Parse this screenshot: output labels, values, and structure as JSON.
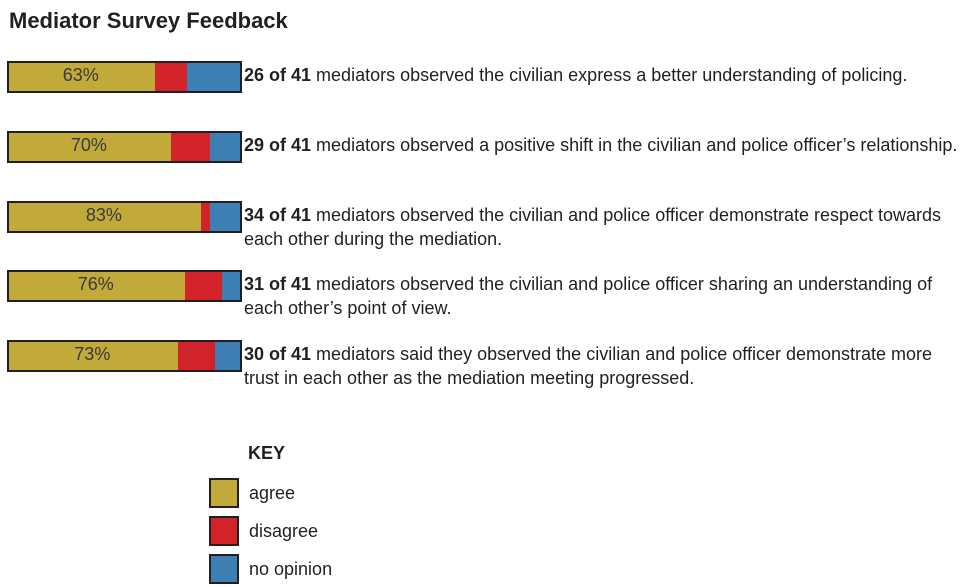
{
  "colors": {
    "agree": "#c1a93a",
    "disagree": "#d2232a",
    "no_opinion": "#3d7fb2"
  },
  "chart_data": {
    "type": "bar",
    "stacked": true,
    "orientation": "horizontal",
    "title": "Mediator Survey Feedback",
    "series_names": [
      "agree",
      "disagree",
      "no opinion"
    ],
    "rows": [
      {
        "percent_label": "63%",
        "values": {
          "agree": 63,
          "disagree": 14,
          "no_opinion": 23
        },
        "count": "26 of 41",
        "text": " mediators observed the civilian express a better understanding of policing."
      },
      {
        "percent_label": "70%",
        "values": {
          "agree": 70,
          "disagree": 17,
          "no_opinion": 13
        },
        "count": "29 of 41",
        "text": " mediators observed a positive shift in the civilian and police officer’s relationship."
      },
      {
        "percent_label": "83%",
        "values": {
          "agree": 83,
          "disagree": 4,
          "no_opinion": 13
        },
        "count": "34 of 41",
        "text": " mediators observed the civilian and police officer demonstrate respect towards each other during the mediation."
      },
      {
        "percent_label": "76%",
        "values": {
          "agree": 76,
          "disagree": 16,
          "no_opinion": 8
        },
        "count": "31 of 41",
        "text": " mediators observed the civilian and police officer sharing an understanding of each other’s point of view."
      },
      {
        "percent_label": "73%",
        "values": {
          "agree": 73,
          "disagree": 16,
          "no_opinion": 11
        },
        "count": "30 of 41",
        "text": " mediators said they observed the civilian and police officer demonstrate more trust in each other as the mediation meeting progressed."
      }
    ]
  },
  "key": {
    "title": "KEY",
    "items": [
      {
        "id": "agree",
        "label": "agree"
      },
      {
        "id": "disagree",
        "label": "disagree"
      },
      {
        "id": "no_opinion",
        "label": "no opinion"
      }
    ]
  }
}
